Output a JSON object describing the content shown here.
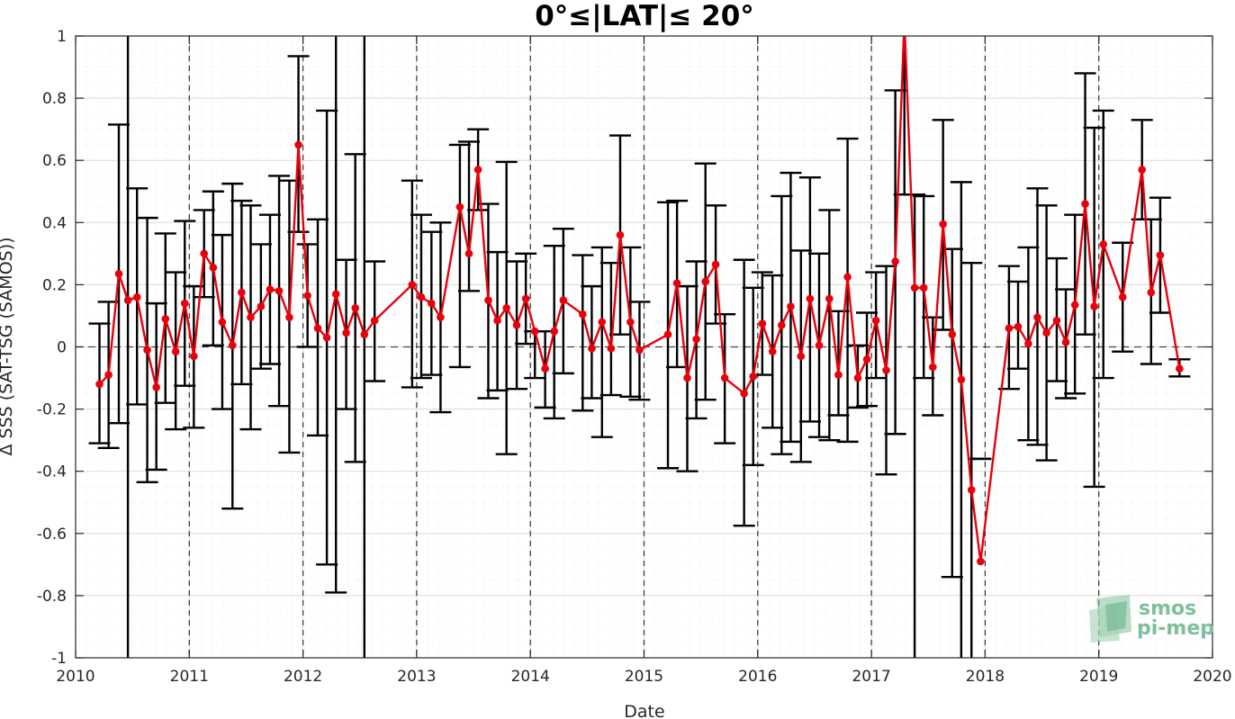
{
  "chart_data": {
    "type": "line",
    "title": "0°≤|LAT|≤ 20°",
    "xlabel": "Date",
    "ylabel": "Δ SSS (SAT-TSG (SAMOS))",
    "xlim": [
      2010,
      2020
    ],
    "ylim": [
      -1,
      1
    ],
    "x_ticks": [
      "2010",
      "2011",
      "2012",
      "2013",
      "2014",
      "2015",
      "2016",
      "2017",
      "2018",
      "2019",
      "2020"
    ],
    "y_ticks": [
      "-1",
      "-0.8",
      "-0.6",
      "-0.4",
      "-0.2",
      "0",
      "0.2",
      "0.4",
      "0.6",
      "0.8",
      "1"
    ],
    "grid": true,
    "reference_line": 0,
    "year_boundaries": [
      2011,
      2012,
      2013,
      2014,
      2015,
      2016,
      2017,
      2018,
      2019
    ],
    "colors": {
      "series": "#e8000b",
      "errorbar": "#000000",
      "grid": "#d9d9d9",
      "logo": "#7fbf9a"
    },
    "series": [
      {
        "x": [
          2010.21,
          2010.29,
          2010.38,
          2010.46,
          2010.54,
          2010.63,
          2010.71,
          2010.79,
          2010.88,
          2010.96,
          2011.04,
          2011.13,
          2011.21,
          2011.29,
          2011.38,
          2011.46,
          2011.54,
          2011.63,
          2011.71,
          2011.79,
          2011.88,
          2011.96,
          2012.04,
          2012.13,
          2012.21,
          2012.29,
          2012.38,
          2012.46,
          2012.54,
          2012.63,
          2012.96,
          2013.04,
          2013.13,
          2013.21,
          2013.38,
          2013.46,
          2013.54,
          2013.63,
          2013.71,
          2013.79,
          2013.88,
          2013.96,
          2014.04,
          2014.13,
          2014.21,
          2014.29,
          2014.46,
          2014.54,
          2014.63,
          2014.71,
          2014.79,
          2014.88,
          2014.96,
          2015.21,
          2015.29,
          2015.38,
          2015.46,
          2015.54,
          2015.63,
          2015.71,
          2015.88,
          2015.96,
          2016.04,
          2016.13,
          2016.21,
          2016.29,
          2016.38,
          2016.46,
          2016.54,
          2016.63,
          2016.71,
          2016.79,
          2016.88,
          2016.96,
          2017.04,
          2017.13,
          2017.21,
          2017.29,
          2017.38,
          2017.46,
          2017.54,
          2017.63,
          2017.71,
          2017.79,
          2017.88,
          2017.96,
          2018.21,
          2018.29,
          2018.38,
          2018.46,
          2018.54,
          2018.63,
          2018.71,
          2018.79,
          2018.88,
          2018.96,
          2019.04,
          2019.21,
          2019.38,
          2019.46,
          2019.54,
          2019.71
        ],
        "y": [
          -0.12,
          -0.09,
          0.235,
          0.15,
          0.16,
          -0.01,
          -0.13,
          0.09,
          -0.015,
          0.14,
          -0.03,
          0.3,
          0.255,
          0.08,
          0.005,
          0.175,
          0.095,
          0.13,
          0.185,
          0.18,
          0.095,
          0.65,
          0.165,
          0.06,
          0.03,
          0.17,
          0.045,
          0.125,
          0.04,
          0.085,
          0.2,
          0.16,
          0.14,
          0.095,
          0.45,
          0.3,
          0.57,
          0.15,
          0.085,
          0.125,
          0.07,
          0.155,
          0.05,
          -0.07,
          0.05,
          0.15,
          0.105,
          -0.005,
          0.08,
          -0.005,
          0.36,
          0.08,
          -0.01,
          0.04,
          0.205,
          -0.1,
          0.025,
          0.21,
          0.265,
          -0.1,
          -0.15,
          -0.095,
          0.075,
          -0.015,
          0.07,
          0.13,
          -0.03,
          0.155,
          0.005,
          0.155,
          -0.09,
          0.225,
          -0.1,
          -0.04,
          0.085,
          -0.075,
          0.275,
          1.05,
          0.19,
          0.19,
          -0.065,
          0.395,
          0.04,
          -0.105,
          -0.46,
          -0.69,
          0.06,
          0.065,
          0.01,
          0.095,
          0.045,
          0.085,
          0.015,
          0.135,
          0.46,
          0.13,
          0.33,
          0.16,
          0.57,
          0.175,
          0.295,
          -0.07
        ],
        "err_low": [
          -0.31,
          -0.325,
          -0.245,
          -1.0,
          -0.185,
          -0.435,
          -0.395,
          -0.18,
          -0.265,
          -0.125,
          -0.26,
          0.16,
          0.005,
          -0.2,
          -0.52,
          -0.12,
          -0.265,
          -0.07,
          -0.055,
          -0.19,
          -0.34,
          0.37,
          0.0,
          -0.285,
          -0.7,
          -0.79,
          -0.2,
          -0.37,
          -1.0,
          -0.11,
          -0.13,
          -0.1,
          -0.09,
          -0.21,
          -0.065,
          0.18,
          0.44,
          -0.165,
          -0.14,
          -0.345,
          -0.135,
          0.01,
          -0.1,
          -0.195,
          -0.23,
          -0.085,
          -0.205,
          -0.165,
          -0.29,
          -0.155,
          0.04,
          -0.16,
          -0.17,
          -0.39,
          -0.065,
          -0.4,
          -0.23,
          -0.17,
          0.075,
          -0.31,
          -0.575,
          -0.38,
          -0.09,
          -0.26,
          -0.345,
          -0.305,
          -0.37,
          -0.24,
          -0.29,
          -0.3,
          -0.22,
          -0.305,
          -0.195,
          -0.19,
          -0.1,
          -0.41,
          -0.28,
          0.49,
          -1.0,
          -0.1,
          -0.22,
          0.055,
          -0.74,
          -1.0,
          -1.0,
          -0.36,
          -0.135,
          -0.07,
          -0.3,
          -0.315,
          -0.365,
          -0.11,
          -0.165,
          -0.15,
          0.04,
          -0.45,
          -0.1,
          -0.015,
          0.41,
          -0.055,
          0.11,
          -0.095
        ],
        "err_high": [
          0.075,
          0.145,
          0.715,
          1.0,
          0.51,
          0.415,
          0.14,
          0.365,
          0.24,
          0.405,
          0.195,
          0.44,
          0.5,
          0.36,
          0.525,
          0.47,
          0.455,
          0.33,
          0.425,
          0.55,
          0.535,
          0.935,
          0.33,
          0.41,
          0.76,
          1.0,
          0.28,
          0.62,
          1.0,
          0.275,
          0.535,
          0.425,
          0.37,
          0.4,
          0.65,
          0.66,
          0.7,
          0.46,
          0.305,
          0.595,
          0.275,
          0.3,
          0.05,
          0.05,
          0.325,
          0.38,
          0.295,
          0.195,
          0.32,
          0.27,
          0.68,
          0.32,
          0.145,
          0.465,
          0.47,
          0.195,
          0.275,
          0.59,
          0.455,
          0.105,
          0.28,
          0.19,
          0.24,
          0.23,
          0.485,
          0.56,
          0.31,
          0.545,
          0.3,
          0.44,
          0.115,
          0.67,
          0.005,
          0.11,
          0.24,
          0.26,
          0.825,
          1.0,
          0.49,
          0.485,
          0.095,
          0.73,
          0.315,
          0.53,
          0.27,
          -0.36,
          0.26,
          0.21,
          0.32,
          0.51,
          0.455,
          0.285,
          0.185,
          0.425,
          0.88,
          0.705,
          0.76,
          0.335,
          0.73,
          0.41,
          0.48,
          -0.04
        ]
      }
    ],
    "logo": {
      "line1": "smos",
      "line2": "pi-mep"
    }
  }
}
